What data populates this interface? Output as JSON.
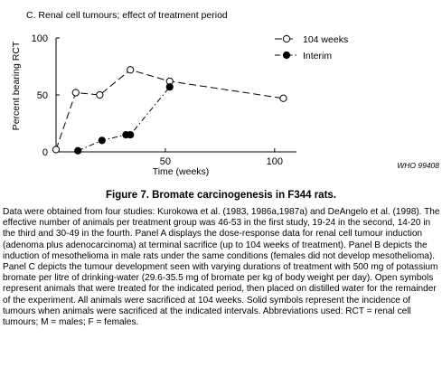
{
  "chart_data": {
    "type": "line",
    "title": "C. Renal cell tumours; effect of treatment period",
    "xlabel": "Time (weeks)",
    "ylabel": "Percent bearing RCT",
    "xlim": [
      0,
      110
    ],
    "ylim": [
      0,
      100
    ],
    "x_ticks": [
      0,
      50,
      100
    ],
    "y_ticks": [
      0,
      50,
      100
    ],
    "legend_position": "top-right",
    "series": [
      {
        "name": "104 weeks",
        "marker": "open-circle",
        "line_style": "long-dash",
        "x": [
          0,
          9,
          20,
          34,
          52,
          104
        ],
        "y": [
          2,
          52,
          50,
          72,
          62,
          47
        ]
      },
      {
        "name": "Interim",
        "marker": "filled-circle",
        "line_style": "dash-dot",
        "x": [
          10,
          21,
          32,
          34,
          52
        ],
        "y": [
          1,
          10,
          15,
          15,
          57
        ]
      }
    ],
    "watermark": "WHO 99408"
  },
  "figure_caption": "Figure 7.  Bromate carcinogenesis in F344 rats.",
  "description": "Data were obtained from four studies: Kurokowa et al. (1983, 1986a,1987a) and DeAngelo et al. (1998). The effective number of animals per treatment group was 46-53 in the first study, 19-24 in the second, 14-20 in the third and 30-49 in the fourth. Panel A displays the dose-response data for renal cell tumour induction (adenoma plus adenocarcinoma) at terminal sacrifice (up to 104 weeks of treatment). Panel B depicts the induction of mesothelioma in male rats under the same conditions (females did not develop mesothelioma). Panel C depicts the tumour development seen with varying durations of treatment with 500 mg of potassium bromate per litre of drinking-water (29.6-35.5 mg of bromate per kg of body weight per day). Open symbols represent animals that were treated for the indicated period, then placed on distilled water for the remainder of the experiment. All animals were sacrificed at 104 weeks. Solid symbols represent the incidence of tumours when animals were sacrificed at the indicated intervals. Abbreviations used: RCT = renal cell tumours; M = males; F = females."
}
